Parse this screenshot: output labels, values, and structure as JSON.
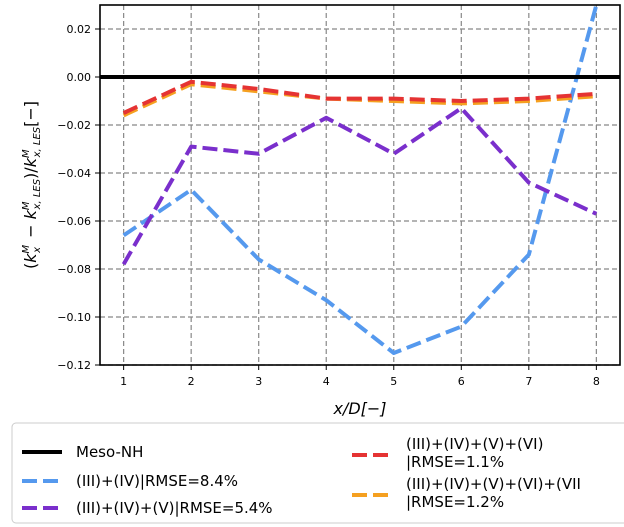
{
  "chart_data": {
    "type": "line",
    "xlabel": "x/D[−]",
    "ylabel": "(k_x^M − k_{x,LES}^M)/k_{x,LES}^M[−]",
    "xlim": [
      0.65,
      8.35
    ],
    "ylim": [
      -0.12,
      0.03
    ],
    "x_ticks": [
      1,
      2,
      3,
      4,
      5,
      6,
      7,
      8
    ],
    "y_ticks": [
      -0.12,
      -0.1,
      -0.08,
      -0.06,
      -0.04,
      -0.02,
      0.0,
      0.02
    ],
    "y_tick_labels": [
      "−0.12",
      "−0.10",
      "−0.08",
      "−0.06",
      "−0.04",
      "−0.02",
      "0.00",
      "0.02"
    ],
    "grid": true,
    "legend_position": "below",
    "series": [
      {
        "name": "Meso-NH",
        "color": "#000000",
        "style": "solid",
        "x": [
          0.65,
          8.35
        ],
        "values": [
          0.0,
          0.0
        ]
      },
      {
        "name": "(III)+(IV)|RMSE=8.4%",
        "color": "#5599ee",
        "style": "dashed",
        "x": [
          1,
          2,
          3,
          4,
          5,
          6,
          7,
          8
        ],
        "values": [
          -0.066,
          -0.047,
          -0.076,
          -0.093,
          -0.115,
          -0.104,
          -0.074,
          0.03
        ]
      },
      {
        "name": "(III)+(IV)+(V)|RMSE=5.4%",
        "color": "#7a2fcc",
        "style": "dashed",
        "x": [
          1,
          2,
          3,
          4,
          5,
          6,
          7,
          8
        ],
        "values": [
          -0.078,
          -0.029,
          -0.032,
          -0.017,
          -0.032,
          -0.013,
          -0.044,
          -0.057
        ]
      },
      {
        "name": "(III)+(IV)+(V)+(VI)|RMSE=1.1%",
        "label_lines": [
          "(III)+(IV)+(V)+(VI)",
          "|RMSE=1.1%"
        ],
        "color": "#e53333",
        "style": "dashed",
        "x": [
          1,
          2,
          3,
          4,
          5,
          6,
          7,
          8
        ],
        "values": [
          -0.015,
          -0.002,
          -0.005,
          -0.009,
          -0.009,
          -0.01,
          -0.009,
          -0.007
        ]
      },
      {
        "name": "(III)+(IV)+(V)+(VI)+(VII)|RMSE=1.2%",
        "label_lines": [
          "(III)+(IV)+(V)+(VI)+(VII",
          "|RMSE=1.2%"
        ],
        "color": "#f5a020",
        "style": "dashed",
        "x": [
          1,
          2,
          3,
          4,
          5,
          6,
          7,
          8
        ],
        "values": [
          -0.016,
          -0.003,
          -0.006,
          -0.009,
          -0.01,
          -0.011,
          -0.01,
          -0.008
        ]
      }
    ]
  }
}
